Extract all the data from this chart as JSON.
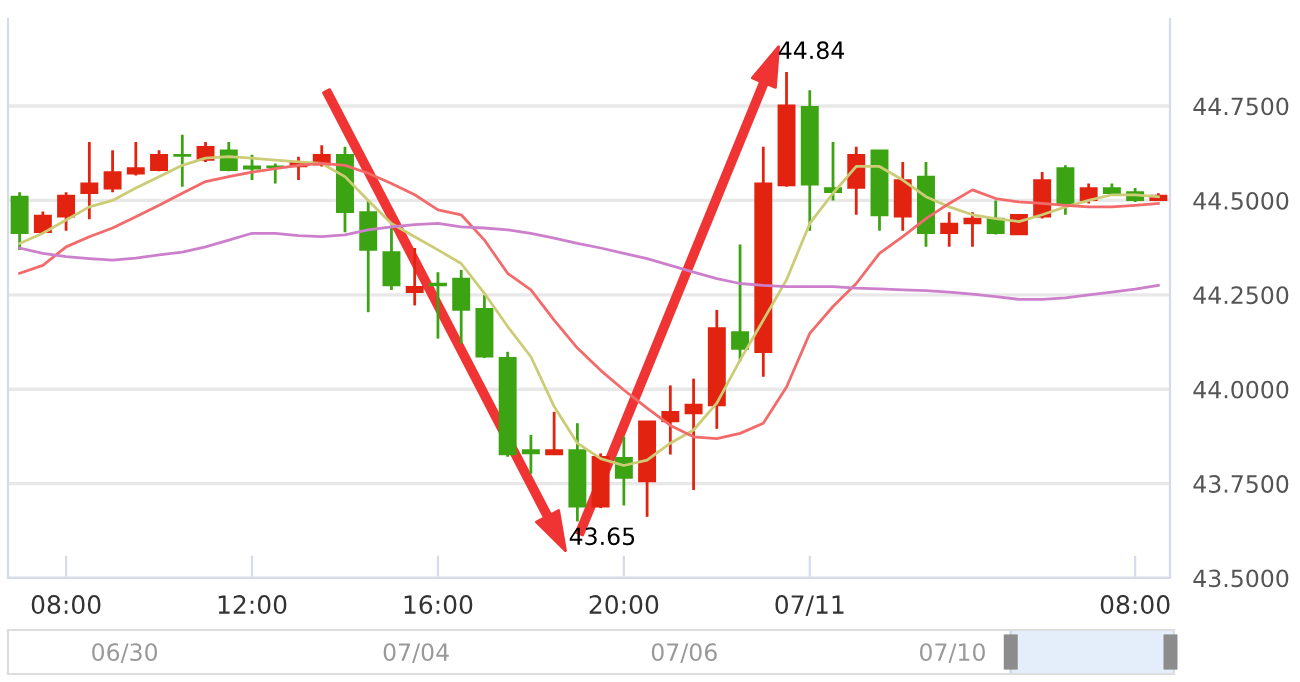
{
  "chart_data": {
    "type": "candlestick",
    "categories": [
      null,
      null,
      "08:00",
      null,
      null,
      null,
      null,
      null,
      null,
      null,
      "12:00",
      null,
      null,
      null,
      null,
      null,
      null,
      null,
      "16:00",
      null,
      null,
      null,
      null,
      null,
      null,
      null,
      "20:00",
      null,
      null,
      null,
      null,
      null,
      null,
      null,
      "07/11",
      null,
      null,
      null,
      null,
      null,
      null,
      null,
      null,
      null,
      null,
      null,
      null,
      null,
      "08:00",
      null
    ],
    "ohlc": [
      [
        44.51,
        44.522,
        44.369,
        44.413
      ],
      [
        44.416,
        44.471,
        44.413,
        44.46
      ],
      [
        44.457,
        44.522,
        44.42,
        44.513
      ],
      [
        44.519,
        44.655,
        44.45,
        44.545
      ],
      [
        44.531,
        44.633,
        44.522,
        44.575
      ],
      [
        44.571,
        44.655,
        44.566,
        44.586
      ],
      [
        44.58,
        44.633,
        44.577,
        44.621
      ],
      [
        44.621,
        44.674,
        44.536,
        44.618
      ],
      [
        44.607,
        44.655,
        44.602,
        44.642
      ],
      [
        44.633,
        44.655,
        44.577,
        44.58
      ],
      [
        44.59,
        44.621,
        44.554,
        44.584
      ],
      [
        44.59,
        44.598,
        44.545,
        44.588
      ],
      [
        44.59,
        44.616,
        44.554,
        44.602
      ],
      [
        44.595,
        44.646,
        44.59,
        44.621
      ],
      [
        44.621,
        44.642,
        44.416,
        44.469
      ],
      [
        44.469,
        44.5,
        44.204,
        44.369
      ],
      [
        44.363,
        44.43,
        44.263,
        44.275
      ],
      [
        44.257,
        44.374,
        44.222,
        44.271
      ],
      [
        44.28,
        44.31,
        44.134,
        44.275
      ],
      [
        44.293,
        44.316,
        44.121,
        44.21
      ],
      [
        44.213,
        44.249,
        44.083,
        44.086
      ],
      [
        44.083,
        44.099,
        43.821,
        43.827
      ],
      [
        43.839,
        43.879,
        43.776,
        43.83
      ],
      [
        43.827,
        43.94,
        43.827,
        43.839
      ],
      [
        43.839,
        43.91,
        43.65,
        43.689
      ],
      [
        43.689,
        43.83,
        43.685,
        43.821
      ],
      [
        43.818,
        43.874,
        43.692,
        43.765
      ],
      [
        43.756,
        43.915,
        43.662,
        43.915
      ],
      [
        43.915,
        44.01,
        43.827,
        43.94
      ],
      [
        43.936,
        44.028,
        43.733,
        43.959
      ],
      [
        43.957,
        44.21,
        43.895,
        44.162
      ],
      [
        44.151,
        44.383,
        44.074,
        44.107
      ],
      [
        44.098,
        44.642,
        44.033,
        44.545
      ],
      [
        44.54,
        44.84,
        44.536,
        44.752
      ],
      [
        44.748,
        44.792,
        44.42,
        44.542
      ],
      [
        44.533,
        44.655,
        44.5,
        44.522
      ],
      [
        44.533,
        44.642,
        44.462,
        44.621
      ],
      [
        44.633,
        44.633,
        44.42,
        44.46
      ],
      [
        44.457,
        44.602,
        44.42,
        44.554
      ],
      [
        44.563,
        44.602,
        44.377,
        44.413
      ],
      [
        44.413,
        44.469,
        44.377,
        44.439
      ],
      [
        44.439,
        44.469,
        44.377,
        44.452
      ],
      [
        44.452,
        44.5,
        44.41,
        44.413
      ],
      [
        44.41,
        44.462,
        44.41,
        44.462
      ],
      [
        44.457,
        44.575,
        44.452,
        44.554
      ],
      [
        44.586,
        44.593,
        44.462,
        44.492
      ],
      [
        44.501,
        44.545,
        44.492,
        44.533
      ],
      [
        44.533,
        44.545,
        44.515,
        44.519
      ],
      [
        44.522,
        44.533,
        44.496,
        44.501
      ],
      [
        44.501,
        44.519,
        44.499,
        44.513
      ]
    ],
    "colors": [
      "#3ca413",
      "#e1230f",
      "#e1230f",
      "#e1230f",
      "#e1230f",
      "#e1230f",
      "#e1230f",
      "#3ca413",
      "#e1230f",
      "#3ca413",
      "#3ca413",
      "#3ca413",
      "#e1230f",
      "#e1230f",
      "#3ca413",
      "#3ca413",
      "#3ca413",
      "#e1230f",
      "#3ca413",
      "#3ca413",
      "#3ca413",
      "#3ca413",
      "#3ca413",
      "#e1230f",
      "#3ca413",
      "#e1230f",
      "#3ca413",
      "#e1230f",
      "#e1230f",
      "#e1230f",
      "#e1230f",
      "#3ca413",
      "#e1230f",
      "#e1230f",
      "#3ca413",
      "#3ca413",
      "#e1230f",
      "#3ca413",
      "#e1230f",
      "#3ca413",
      "#e1230f",
      "#e1230f",
      "#3ca413",
      "#e1230f",
      "#e1230f",
      "#3ca413",
      "#e1230f",
      "#3ca413",
      "#3ca413",
      "#e1230f"
    ],
    "series": [
      {
        "type": "line",
        "color": "#cccc77",
        "values": [
          44.386,
          44.413,
          44.448,
          44.483,
          44.5,
          44.533,
          44.563,
          44.593,
          44.612,
          44.616,
          44.612,
          44.607,
          44.602,
          44.598,
          44.563,
          44.5,
          44.439,
          44.404,
          44.369,
          44.333,
          44.254,
          44.166,
          44.086,
          43.954,
          43.857,
          43.816,
          43.798,
          43.812,
          43.857,
          43.892,
          43.963,
          44.077,
          44.183,
          44.29,
          44.439,
          44.519,
          44.59,
          44.59,
          44.554,
          44.51,
          44.483,
          44.462,
          44.452,
          44.444,
          44.462,
          44.483,
          44.5,
          44.515,
          44.515,
          44.51
        ]
      },
      {
        "type": "line",
        "color": "#f36a6a",
        "values": [
          44.307,
          44.328,
          44.377,
          44.404,
          44.427,
          44.457,
          44.487,
          44.519,
          44.55,
          44.563,
          44.575,
          44.584,
          44.593,
          44.598,
          44.593,
          44.572,
          44.545,
          44.515,
          44.475,
          44.462,
          44.395,
          44.307,
          44.263,
          44.183,
          44.109,
          44.05,
          43.998,
          43.95,
          43.904,
          43.874,
          43.869,
          43.883,
          43.91,
          44.006,
          44.148,
          44.219,
          44.28,
          44.36,
          44.404,
          44.452,
          44.492,
          44.528,
          44.505,
          44.496,
          44.492,
          44.487,
          44.483,
          44.483,
          44.487,
          44.492
        ]
      },
      {
        "type": "line",
        "color": "#cc80cc",
        "values": [
          44.374,
          44.36,
          44.351,
          44.346,
          44.342,
          44.347,
          44.356,
          44.363,
          44.377,
          44.395,
          44.413,
          44.413,
          44.407,
          44.404,
          44.409,
          44.422,
          44.43,
          44.436,
          44.439,
          44.43,
          44.427,
          44.422,
          44.413,
          44.4,
          44.386,
          44.374,
          44.36,
          44.346,
          44.328,
          44.31,
          44.293,
          44.28,
          44.275,
          44.272,
          44.272,
          44.272,
          44.268,
          44.266,
          44.263,
          44.261,
          44.257,
          44.252,
          44.245,
          44.238,
          44.238,
          44.242,
          44.25,
          44.257,
          44.265,
          44.275
        ]
      }
    ],
    "ylim": [
      43.5,
      44.98
    ],
    "yticks": [
      {
        "value": 43.5,
        "label": "43.5000"
      },
      {
        "value": 43.75,
        "label": "43.7500"
      },
      {
        "value": 44.0,
        "label": "44.0000"
      },
      {
        "value": 44.25,
        "label": "44.2500"
      },
      {
        "value": 44.5,
        "label": "44.5000"
      },
      {
        "value": 44.75,
        "label": "44.7500"
      }
    ],
    "grid": "y",
    "annotations": [
      "44.84",
      "43.65",
      "06/30",
      "07/04",
      "07/06",
      "07/10"
    ]
  }
}
